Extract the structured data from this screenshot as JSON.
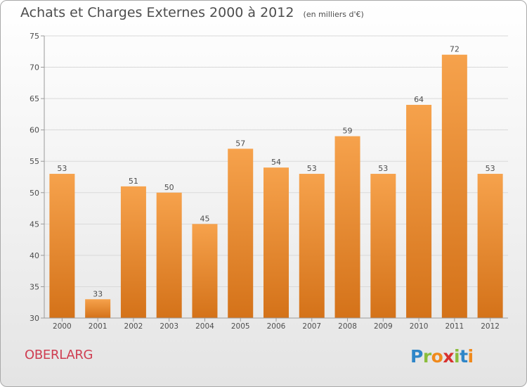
{
  "header": {
    "title": "Achats et Charges Externes 2000 à 2012",
    "unit": "(en milliers d'€)"
  },
  "footer": {
    "town": "OBERLARG",
    "logo_text": "Proxiti"
  },
  "colors": {
    "bar_top": "#f6a24c",
    "bar_bottom": "#d47219",
    "town": "#cf3d51",
    "text": "#4d4d4d"
  },
  "chart_data": {
    "type": "bar",
    "title": "Achats et Charges Externes 2000 à 2012",
    "subtitle": "(en milliers d'€)",
    "xlabel": "",
    "ylabel": "",
    "categories": [
      "2000",
      "2001",
      "2002",
      "2003",
      "2004",
      "2005",
      "2006",
      "2007",
      "2008",
      "2009",
      "2010",
      "2011",
      "2012"
    ],
    "values": [
      53,
      33,
      51,
      50,
      45,
      57,
      54,
      53,
      59,
      53,
      64,
      72,
      53
    ],
    "ylim": [
      30,
      75
    ],
    "yticks": [
      30,
      35,
      40,
      45,
      50,
      55,
      60,
      65,
      70,
      75
    ],
    "grid": true,
    "data_labels": true,
    "legend": "none"
  }
}
